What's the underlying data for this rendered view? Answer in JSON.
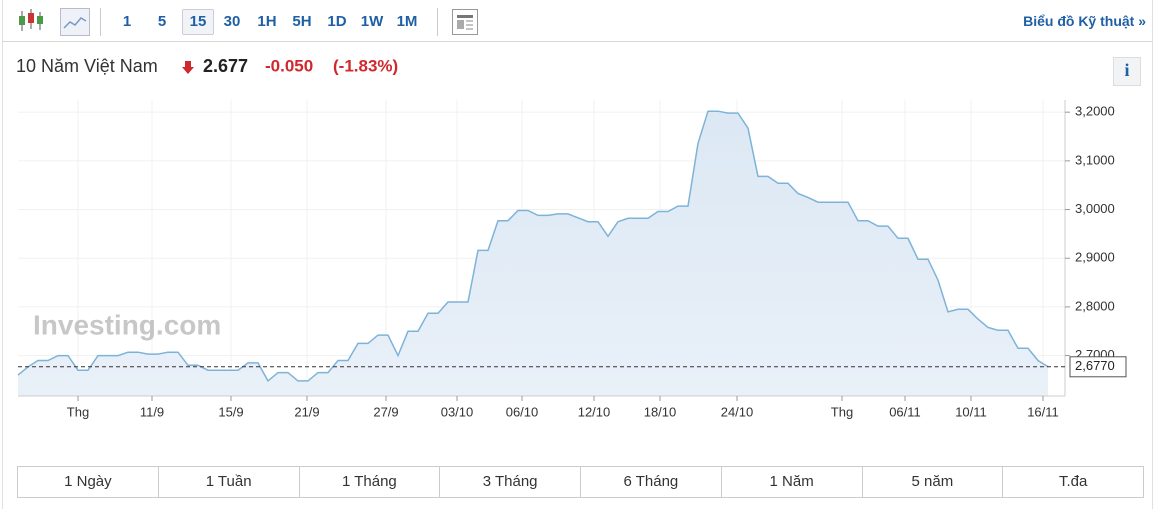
{
  "toolbar": {
    "intervals": [
      "1",
      "5",
      "15",
      "30",
      "1H",
      "5H",
      "1D",
      "1W",
      "1M"
    ],
    "selected_interval": "15",
    "link": "Biểu đồ Kỹ thuật »"
  },
  "header": {
    "name": "10 Năm Việt Nam",
    "price": "2.677",
    "change": "-0.050",
    "change_percent": "(-1.83%)"
  },
  "watermark": "Investing.com",
  "chart_data": {
    "type": "area",
    "values": [
      2.66,
      2.677,
      2.69,
      2.69,
      2.7,
      2.7,
      2.67,
      2.67,
      2.7,
      2.7,
      2.7,
      2.707,
      2.707,
      2.703,
      2.703,
      2.707,
      2.707,
      2.68,
      2.68,
      2.67,
      2.67,
      2.67,
      2.67,
      2.685,
      2.685,
      2.648,
      2.665,
      2.665,
      2.648,
      2.648,
      2.665,
      2.665,
      2.69,
      2.69,
      2.725,
      2.725,
      2.742,
      2.742,
      2.7,
      2.75,
      2.75,
      2.787,
      2.787,
      2.81,
      2.81,
      2.81,
      2.916,
      2.916,
      2.977,
      2.977,
      2.998,
      2.998,
      2.988,
      2.988,
      2.991,
      2.991,
      2.983,
      2.975,
      2.975,
      2.945,
      2.975,
      2.982,
      2.982,
      2.982,
      2.996,
      2.996,
      3.007,
      3.007,
      3.136,
      3.202,
      3.202,
      3.198,
      3.198,
      3.167,
      3.068,
      3.068,
      3.054,
      3.054,
      3.033,
      3.025,
      3.015,
      3.015,
      3.015,
      3.015,
      2.977,
      2.977,
      2.966,
      2.966,
      2.941,
      2.941,
      2.898,
      2.898,
      2.855,
      2.79,
      2.795,
      2.795,
      2.775,
      2.758,
      2.752,
      2.752,
      2.715,
      2.715,
      2.69,
      2.677
    ],
    "color": "#7eb3d8",
    "xlim": [
      0,
      103
    ],
    "xticks": [
      {
        "value": 6,
        "label": "Thg"
      },
      {
        "value": 13.4,
        "label": "11/9"
      },
      {
        "value": 21.3,
        "label": "15/9"
      },
      {
        "value": 28.9,
        "label": "21/9"
      },
      {
        "value": 36.8,
        "label": "27/9"
      },
      {
        "value": 43.9,
        "label": "03/10"
      },
      {
        "value": 50.4,
        "label": "06/10"
      },
      {
        "value": 57.6,
        "label": "12/10"
      },
      {
        "value": 64.2,
        "label": "18/10"
      },
      {
        "value": 71.9,
        "label": "24/10"
      },
      {
        "value": 82.4,
        "label": "Thg"
      },
      {
        "value": 88.7,
        "label": "06/11"
      },
      {
        "value": 95.3,
        "label": "10/11"
      },
      {
        "value": 102.5,
        "label": "16/11"
      }
    ],
    "ylim": [
      2.617,
      3.225
    ],
    "yticks": [
      {
        "value": 2.7,
        "label": "2,7000"
      },
      {
        "value": 2.8,
        "label": "2,8000"
      },
      {
        "value": 2.9,
        "label": "2,9000"
      },
      {
        "value": 3.0,
        "label": "3,0000"
      },
      {
        "value": 3.1,
        "label": "3,1000"
      },
      {
        "value": 3.2,
        "label": "3,2000"
      }
    ],
    "current_value": {
      "value": 2.677,
      "label": "2,6770"
    },
    "grid": true
  },
  "ranges": [
    "1 Ngày",
    "1 Tuần",
    "1 Tháng",
    "3 Tháng",
    "6 Tháng",
    "1 Năm",
    "5 năm",
    "T.đa"
  ]
}
